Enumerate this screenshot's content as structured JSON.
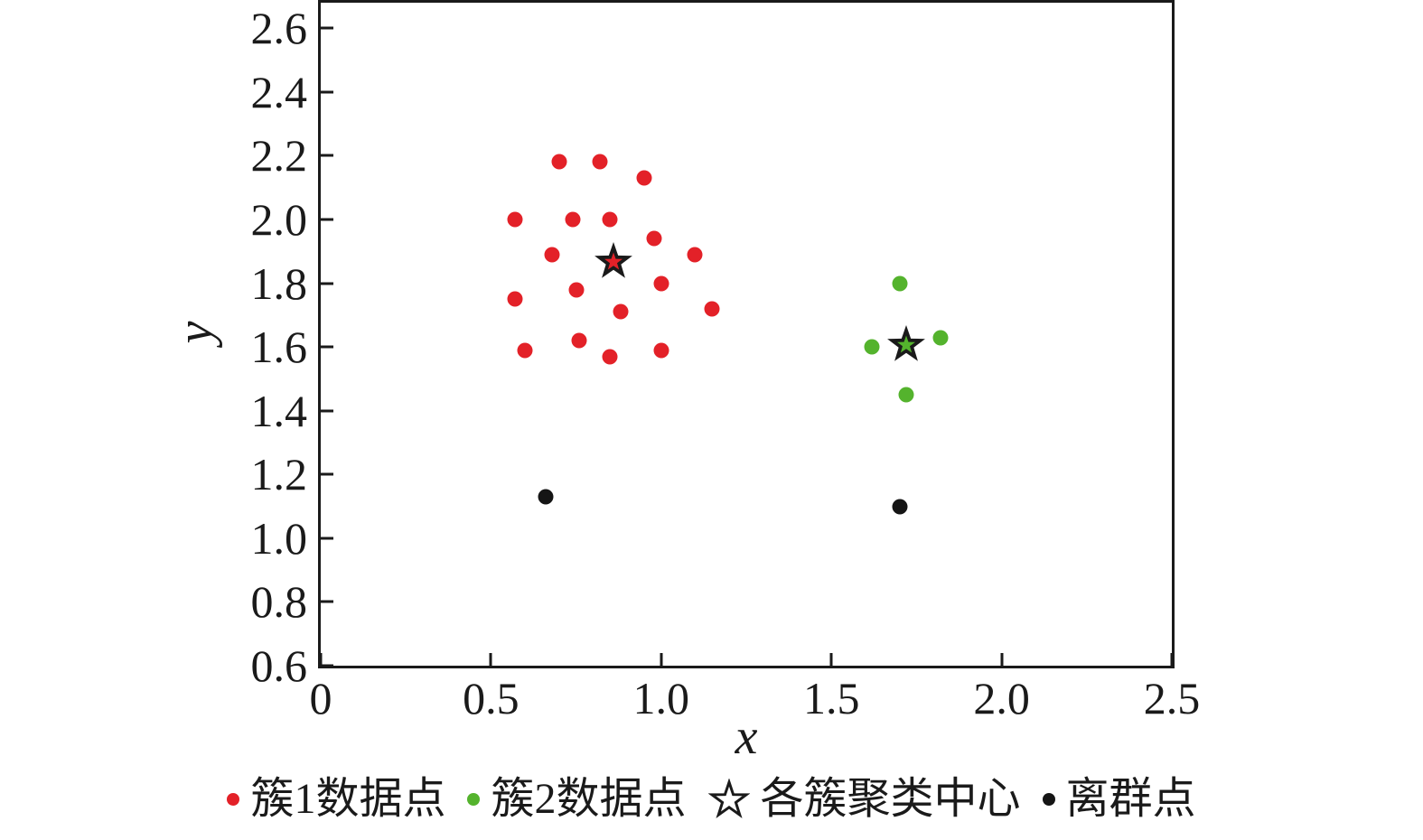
{
  "chart_data": {
    "type": "scatter",
    "title": "",
    "xlabel": "x",
    "ylabel": "y",
    "xlim": [
      0,
      2.5
    ],
    "ylim": [
      0.6,
      2.68
    ],
    "grid": false,
    "legend_position": "bottom",
    "x_ticks": {
      "values": [
        0,
        0.5,
        1.0,
        1.5,
        2.0,
        2.5
      ],
      "labels": [
        "0",
        "0.5",
        "1.0",
        "1.5",
        "2.0",
        "2.5"
      ]
    },
    "y_ticks": {
      "values": [
        0.6,
        0.8,
        1.0,
        1.2,
        1.4,
        1.6,
        1.8,
        2.0,
        2.2,
        2.4,
        2.6
      ],
      "labels": [
        "0.6",
        "0.8",
        "1.0",
        "1.2",
        "1.4",
        "1.6",
        "1.8",
        "2.0",
        "2.2",
        "2.4",
        "2.6"
      ]
    },
    "series": [
      {
        "name": "簇1数据点",
        "marker": "dot",
        "color": "#e32128",
        "points": [
          [
            0.7,
            2.18
          ],
          [
            0.82,
            2.18
          ],
          [
            0.95,
            2.13
          ],
          [
            0.57,
            2.0
          ],
          [
            0.74,
            2.0
          ],
          [
            0.85,
            2.0
          ],
          [
            0.98,
            1.94
          ],
          [
            0.68,
            1.89
          ],
          [
            1.1,
            1.89
          ],
          [
            0.75,
            1.78
          ],
          [
            1.0,
            1.8
          ],
          [
            0.57,
            1.75
          ],
          [
            0.88,
            1.71
          ],
          [
            1.15,
            1.72
          ],
          [
            0.76,
            1.62
          ],
          [
            0.6,
            1.59
          ],
          [
            0.85,
            1.57
          ],
          [
            1.0,
            1.59
          ]
        ]
      },
      {
        "name": "簇2数据点",
        "marker": "dot",
        "color": "#54b32d",
        "points": [
          [
            1.7,
            1.8
          ],
          [
            1.62,
            1.6
          ],
          [
            1.82,
            1.63
          ],
          [
            1.72,
            1.45
          ]
        ]
      },
      {
        "name": "各簇聚类中心",
        "marker": "star",
        "outline_color": "#1a1a1a",
        "points": [
          {
            "x": 0.86,
            "y": 1.87,
            "color": "#e32128"
          },
          {
            "x": 1.72,
            "y": 1.61,
            "color": "#54b32d"
          }
        ]
      },
      {
        "name": "离群点",
        "marker": "dot",
        "color": "#151515",
        "points": [
          [
            0.66,
            1.13
          ],
          [
            1.7,
            1.1
          ]
        ]
      }
    ],
    "legend": [
      {
        "label": "簇1数据点",
        "marker": "dot",
        "color": "#e32128"
      },
      {
        "label": "簇2数据点",
        "marker": "dot",
        "color": "#54b32d"
      },
      {
        "label": "各簇聚类中心",
        "marker": "star-outline",
        "color": "#1a1a1a"
      },
      {
        "label": "离群点",
        "marker": "dot",
        "color": "#151515"
      }
    ]
  }
}
